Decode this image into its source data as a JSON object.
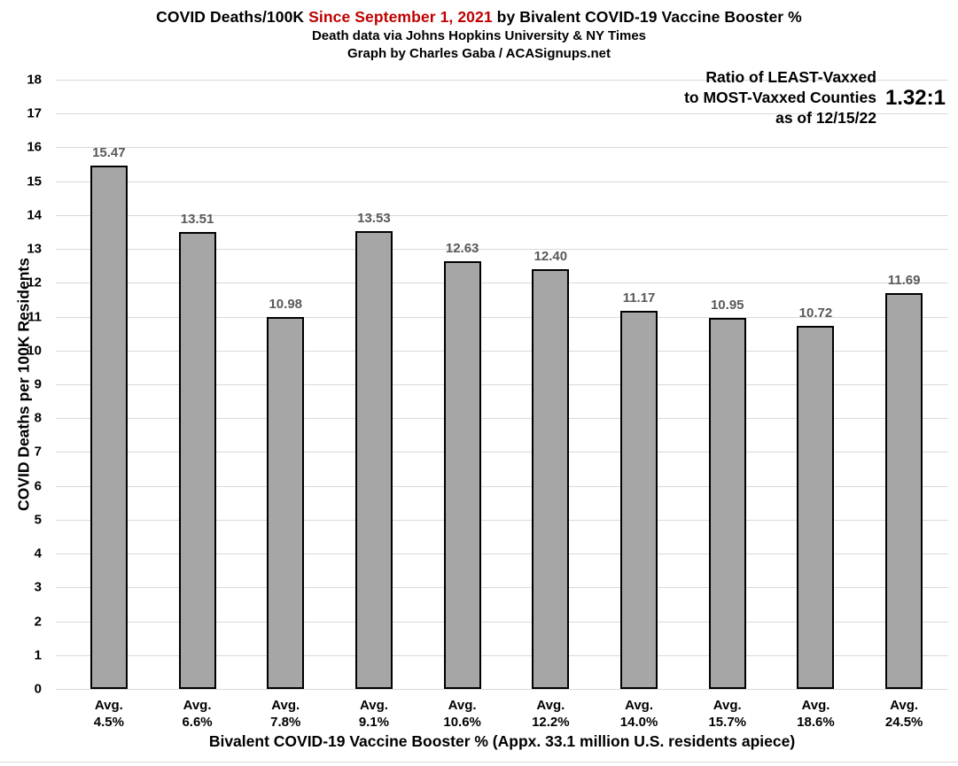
{
  "header": {
    "title_part1": "COVID Deaths/100K ",
    "title_highlight": "Since September 1, 2021",
    "title_part2": " by Bivalent COVID-19 Vaccine Booster %",
    "title_highlight_color": "#C00000",
    "subtitle1": "Death data via Johns Hopkins University & NY Times",
    "subtitle2": "Graph by Charles Gaba / ACASignups.net"
  },
  "annotation": {
    "line1": "Ratio of LEAST-Vaxxed",
    "line2": "to MOST-Vaxxed Counties",
    "line3": "as of 12/15/22",
    "ratio_value": "1.32:1"
  },
  "chart_data": {
    "type": "bar",
    "title": "COVID Deaths/100K Since September 1, 2021 by Bivalent COVID-19 Vaccine Booster %",
    "subtitles": [
      "Death data via Johns Hopkins University & NY Times",
      "Graph by Charles Gaba / ACASignups.net"
    ],
    "annotations": [
      "Ratio of LEAST-Vaxxed to MOST-Vaxxed Counties as of 12/15/22 = 1.32:1"
    ],
    "category_prefix": "Avg.",
    "category_values": [
      "4.5%",
      "6.6%",
      "7.8%",
      "9.1%",
      "10.6%",
      "12.2%",
      "14.0%",
      "15.7%",
      "18.6%",
      "24.5%"
    ],
    "categories": [
      "Avg. 4.5%",
      "Avg. 6.6%",
      "Avg. 7.8%",
      "Avg. 9.1%",
      "Avg. 10.6%",
      "Avg. 12.2%",
      "Avg. 14.0%",
      "Avg. 15.7%",
      "Avg. 18.6%",
      "Avg. 24.5%"
    ],
    "values": [
      15.47,
      13.51,
      10.98,
      13.53,
      12.63,
      12.4,
      11.17,
      10.95,
      10.72,
      11.69
    ],
    "xlabel": "Bivalent COVID-19 Vaccine Booster % (Appx. 33.1 million U.S. residents apiece)",
    "ylabel": "COVID Deaths per 100K Residents",
    "ylim": [
      0,
      18
    ],
    "ytick_step": 1,
    "grid": "horizontal",
    "legend": "none",
    "bar_fill": "#A6A6A6",
    "bar_border": "#000000",
    "value_label_color": "#595959",
    "gridline_color": "#D9D9D9"
  }
}
